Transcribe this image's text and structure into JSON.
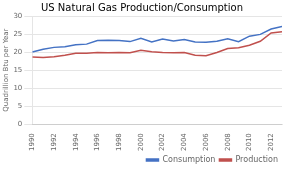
{
  "chart_data": {
    "type": "line",
    "title": "US Natural Gas Production/Consumption",
    "ylabel": "Quadrillion Btu per Year",
    "x": [
      1990,
      1991,
      1992,
      1993,
      1994,
      1995,
      1996,
      1997,
      1998,
      1999,
      2000,
      2001,
      2002,
      2003,
      2004,
      2005,
      2006,
      2007,
      2008,
      2009,
      2010,
      2011,
      2012,
      2013
    ],
    "series": [
      {
        "name": "Consumption",
        "color": "#4472C4",
        "values": [
          20.0,
          20.8,
          21.3,
          21.5,
          22.0,
          22.2,
          23.2,
          23.3,
          23.2,
          22.9,
          23.8,
          22.8,
          23.6,
          23.1,
          23.5,
          22.8,
          22.7,
          23.0,
          23.7,
          22.9,
          24.4,
          24.9,
          26.4,
          27.1
        ]
      },
      {
        "name": "Production",
        "color": "#C0504D",
        "values": [
          18.6,
          18.5,
          18.7,
          19.1,
          19.7,
          19.7,
          19.9,
          19.8,
          19.9,
          19.8,
          20.5,
          20.1,
          19.9,
          19.8,
          19.9,
          19.1,
          19.0,
          19.9,
          21.0,
          21.2,
          21.9,
          23.0,
          25.3,
          25.6
        ]
      }
    ],
    "xlim": [
      1990,
      2013
    ],
    "xticks": [
      1990,
      1992,
      1994,
      1996,
      1998,
      2000,
      2002,
      2004,
      2006,
      2008,
      2010,
      2012
    ],
    "ylim": [
      0,
      30
    ],
    "yticks": [
      0,
      5,
      10,
      15,
      20,
      25,
      30
    ],
    "grid": "y",
    "legend": "lower right"
  }
}
